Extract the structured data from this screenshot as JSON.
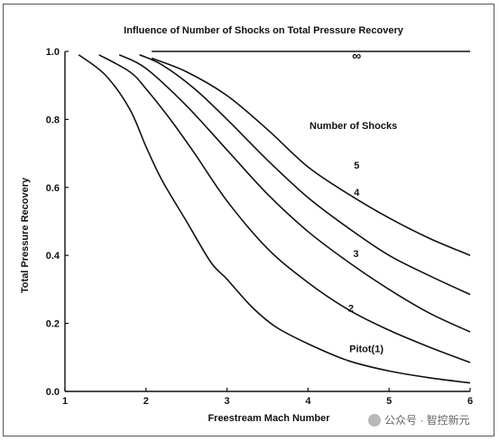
{
  "chart_data": {
    "type": "line",
    "title": "Influence of Number of Shocks on Total Pressure Recovery",
    "xlabel": "Freestream Mach Number",
    "ylabel": "Total Pressure Recovery",
    "xlim": [
      1,
      6
    ],
    "ylim": [
      0,
      1.0
    ],
    "x_ticks": [
      "1",
      "2",
      "3",
      "4",
      "5",
      "6"
    ],
    "y_ticks": [
      "0.0",
      "0.2",
      "0.4",
      "0.6",
      "0.8",
      "1.0"
    ],
    "grid": false,
    "legend_title": "Number of Shocks",
    "series": [
      {
        "name": "Pitot(1)",
        "x": [
          1.17,
          1.5,
          1.8,
          2.0,
          2.2,
          2.5,
          2.8,
          3.0,
          3.3,
          3.6,
          4.0,
          4.5,
          5.0,
          5.5,
          6.0
        ],
        "y": [
          0.99,
          0.93,
          0.83,
          0.72,
          0.62,
          0.5,
          0.38,
          0.33,
          0.25,
          0.19,
          0.14,
          0.09,
          0.06,
          0.04,
          0.025
        ]
      },
      {
        "name": "2",
        "x": [
          1.42,
          1.8,
          2.0,
          2.3,
          2.6,
          3.0,
          3.5,
          4.0,
          4.5,
          5.0,
          5.5,
          6.0
        ],
        "y": [
          0.99,
          0.94,
          0.89,
          0.8,
          0.7,
          0.56,
          0.42,
          0.32,
          0.24,
          0.18,
          0.13,
          0.085
        ]
      },
      {
        "name": "3",
        "x": [
          1.67,
          2.0,
          2.5,
          3.0,
          3.5,
          4.0,
          4.5,
          5.0,
          5.5,
          6.0
        ],
        "y": [
          0.99,
          0.95,
          0.84,
          0.71,
          0.58,
          0.47,
          0.38,
          0.3,
          0.23,
          0.175
        ]
      },
      {
        "name": "4",
        "x": [
          1.92,
          2.2,
          2.6,
          3.0,
          3.5,
          4.0,
          4.5,
          5.0,
          5.5,
          6.0
        ],
        "y": [
          0.99,
          0.96,
          0.89,
          0.8,
          0.68,
          0.57,
          0.48,
          0.4,
          0.34,
          0.285
        ]
      },
      {
        "name": "5",
        "x": [
          2.07,
          2.5,
          3.0,
          3.5,
          4.0,
          4.5,
          5.0,
          5.5,
          6.0
        ],
        "y": [
          0.98,
          0.94,
          0.87,
          0.77,
          0.66,
          0.58,
          0.51,
          0.45,
          0.4
        ]
      },
      {
        "name": "∞",
        "x": [
          2.07,
          6.0
        ],
        "y": [
          1.0,
          1.0
        ]
      }
    ]
  },
  "watermark": "公众号 · 智控新元"
}
